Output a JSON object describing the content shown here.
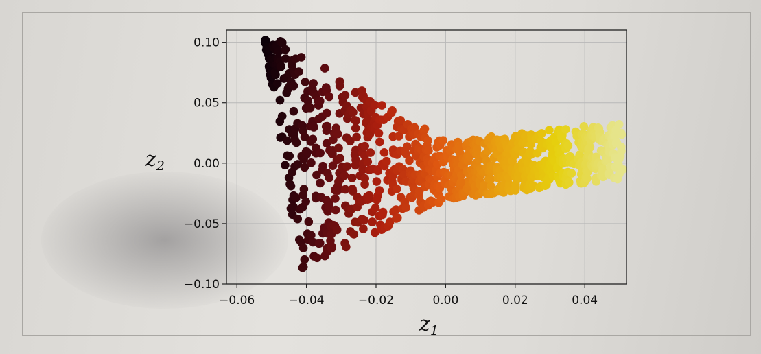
{
  "chart_data": {
    "type": "scatter",
    "title": "",
    "xlabel": "z1",
    "ylabel": "z2",
    "xlabel_main": "z",
    "xlabel_sub": "1",
    "ylabel_main": "z",
    "ylabel_sub": "2",
    "xlim": [
      -0.063,
      0.052
    ],
    "ylim": [
      -0.1,
      0.11
    ],
    "xticks": [
      -0.06,
      -0.04,
      -0.02,
      0.0,
      0.02,
      0.04
    ],
    "xtick_labels": [
      "−0.06",
      "−0.04",
      "−0.02",
      "0.00",
      "0.02",
      "0.04"
    ],
    "yticks": [
      -0.1,
      -0.05,
      0.0,
      0.05,
      0.1
    ],
    "ytick_labels": [
      "−0.10",
      "−0.05",
      "0.00",
      "0.05",
      "0.10"
    ],
    "grid": true,
    "colormap": "hot (black → red → orange → yellow)",
    "colors": [
      "#0a0008",
      "#5a0a10",
      "#b0200e",
      "#e05a10",
      "#e8a010",
      "#e6d00e",
      "#e6e48a"
    ],
    "point_count": 1000
  }
}
